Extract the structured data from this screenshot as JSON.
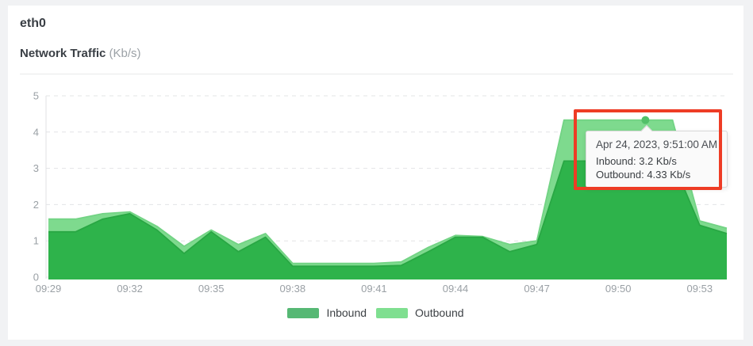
{
  "card": {
    "title": "eth0",
    "chart_heading": "Network Traffic",
    "chart_heading_unit": "(Kb/s)"
  },
  "tooltip": {
    "title": "Apr 24, 2023, 9:51:00 AM",
    "line_inbound": "Inbound: 3.2 Kb/s",
    "line_outbound": "Outbound: 4.33 Kb/s"
  },
  "annotation": {
    "color": "#ee3c25"
  },
  "chart_data": {
    "type": "area",
    "title": "Network Traffic (Kb/s)",
    "x": [
      "09:29",
      "09:30",
      "09:31",
      "09:32",
      "09:33",
      "09:34",
      "09:35",
      "09:36",
      "09:37",
      "09:38",
      "09:39",
      "09:40",
      "09:41",
      "09:42",
      "09:43",
      "09:44",
      "09:45",
      "09:46",
      "09:47",
      "09:48",
      "09:49",
      "09:50",
      "09:51",
      "09:52",
      "09:53",
      "09:54"
    ],
    "x_tick_labels": [
      "09:29",
      "09:32",
      "09:35",
      "09:38",
      "09:41",
      "09:44",
      "09:47",
      "09:50",
      "09:53"
    ],
    "tick_every": 3,
    "ylim": [
      0,
      5
    ],
    "yticks": [
      0,
      1,
      2,
      3,
      4,
      5
    ],
    "grid": "horizontal-dashed",
    "legend_position": "bottom-center",
    "series": [
      {
        "name": "Inbound",
        "fill": "#2eb34b",
        "stroke": "#29a744",
        "legend_color": "#56b874",
        "values": [
          1.25,
          1.25,
          1.6,
          1.75,
          1.3,
          0.65,
          1.25,
          0.7,
          1.1,
          0.3,
          0.3,
          0.3,
          0.3,
          0.32,
          0.7,
          1.1,
          1.1,
          0.7,
          0.9,
          3.2,
          3.2,
          3.2,
          3.2,
          3.2,
          1.43,
          1.2
        ]
      },
      {
        "name": "Outbound",
        "fill": "#7eda8e",
        "stroke": "#72d384",
        "legend_color": "#7fdf90",
        "values": [
          1.6,
          1.6,
          1.75,
          1.8,
          1.4,
          0.85,
          1.3,
          0.9,
          1.2,
          0.38,
          0.38,
          0.38,
          0.38,
          0.42,
          0.82,
          1.15,
          1.12,
          0.9,
          1.0,
          4.33,
          4.33,
          4.33,
          4.33,
          4.33,
          1.55,
          1.35
        ]
      }
    ],
    "highlight": {
      "time": "09:51",
      "x_index": 22,
      "series": "Outbound",
      "value": 4.33,
      "inbound_value": 3.2,
      "marker_color": "#52c069"
    },
    "axis_label_color": "#9aa0a5",
    "gridline_color": "#e3e4e6"
  }
}
